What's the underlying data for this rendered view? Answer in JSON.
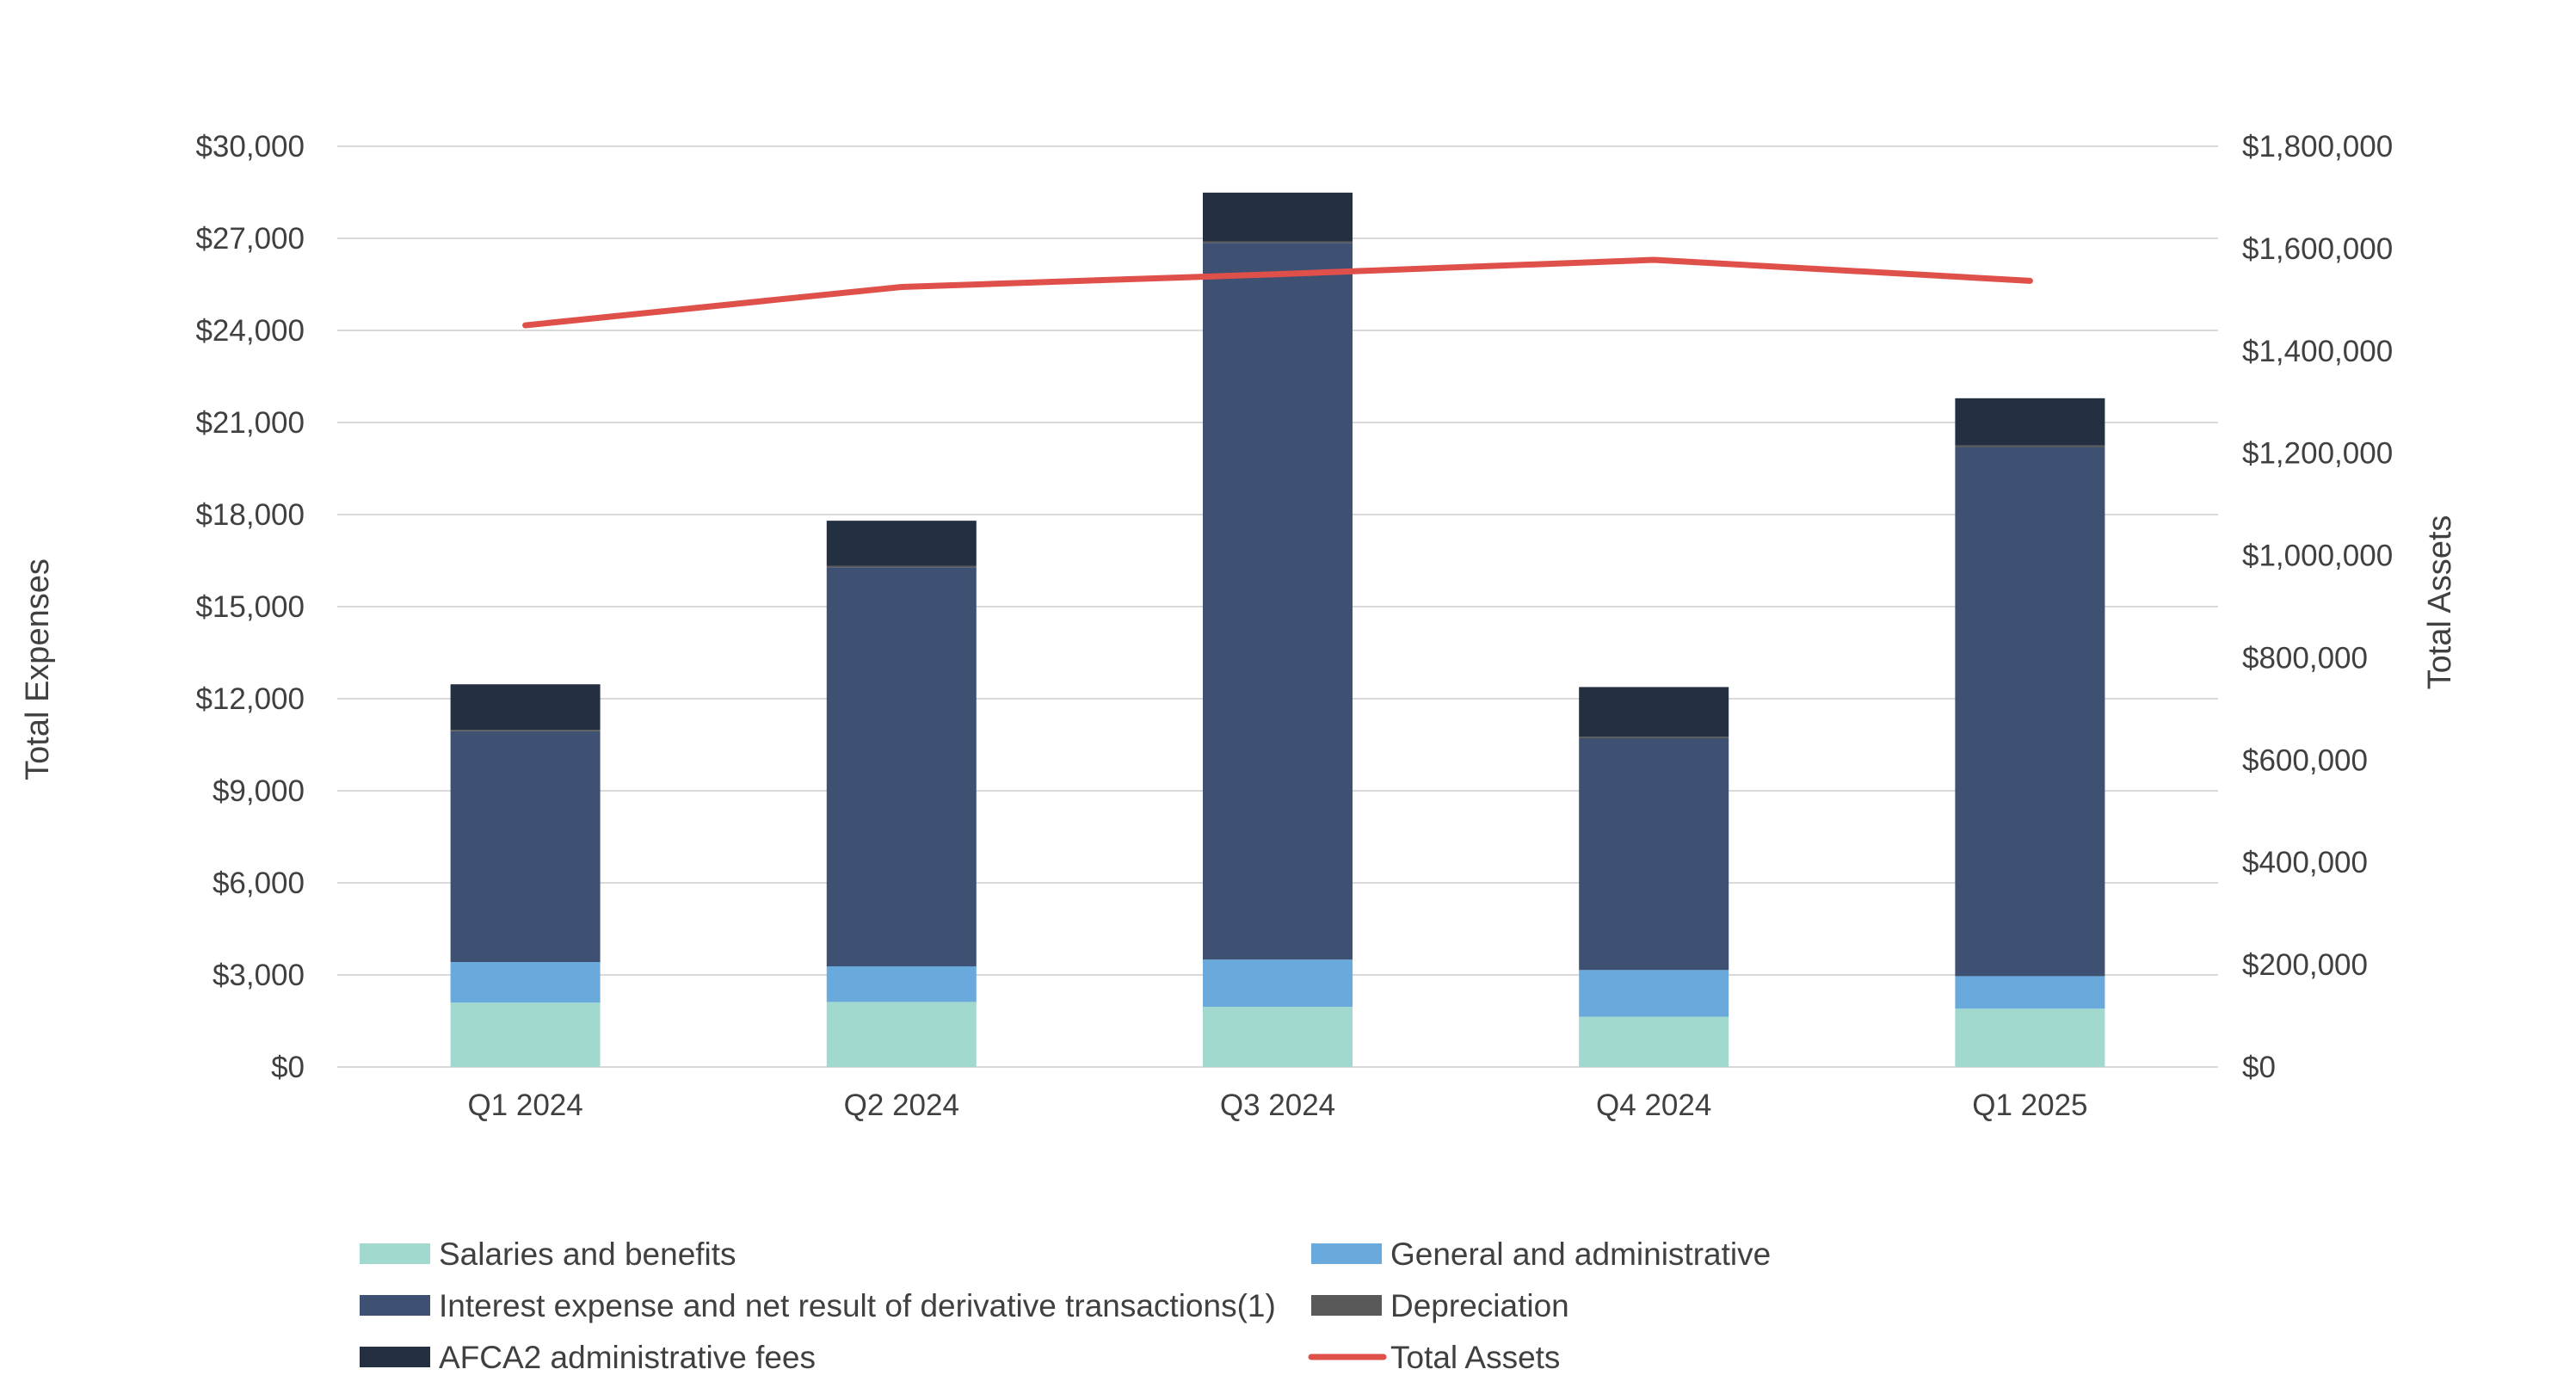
{
  "chart_data": {
    "type": "bar",
    "subtype": "stacked-bar-with-line",
    "categories": [
      "Q1 2024",
      "Q2 2024",
      "Q3 2024",
      "Q4 2024",
      "Q1 2025"
    ],
    "series": [
      {
        "name": "Salaries and benefits",
        "axis": "left",
        "color": "#a2d9cf",
        "values": [
          2100,
          2120,
          1960,
          1640,
          1900
        ]
      },
      {
        "name": "General and administrative",
        "axis": "left",
        "color": "#6aa9dc",
        "values": [
          1320,
          1160,
          1540,
          1520,
          1060
        ]
      },
      {
        "name": "Interest expense and net result of derivative transactions(1)",
        "axis": "left",
        "color": "#3e5172",
        "values": [
          7520,
          13000,
          23350,
          7550,
          17240
        ]
      },
      {
        "name": "Depreciation",
        "axis": "left",
        "color": "#595959",
        "values": [
          50,
          50,
          50,
          50,
          50
        ]
      },
      {
        "name": "AFCA2 administrative fees",
        "axis": "left",
        "color": "#252f42",
        "values": [
          1480,
          1470,
          1590,
          1620,
          1540
        ]
      },
      {
        "name": "Total Assets",
        "axis": "right",
        "type": "line",
        "color": "#e0504a",
        "values": [
          1450000,
          1525000,
          1550000,
          1578000,
          1537000
        ]
      }
    ],
    "ylabel": "Total Expenses",
    "y2label": "Total Assets",
    "ylim": [
      0,
      30000
    ],
    "y2lim": [
      0,
      1800000
    ],
    "yticks": [
      "$0",
      "$3,000",
      "$6,000",
      "$9,000",
      "$12,000",
      "$15,000",
      "$18,000",
      "$21,000",
      "$24,000",
      "$27,000",
      "$30,000"
    ],
    "y2ticks": [
      "$0",
      "$200,000",
      "$400,000",
      "$600,000",
      "$800,000",
      "$1,000,000",
      "$1,200,000",
      "$1,400,000",
      "$1,600,000",
      "$1,800,000"
    ],
    "grid": true,
    "legend_position": "bottom"
  }
}
